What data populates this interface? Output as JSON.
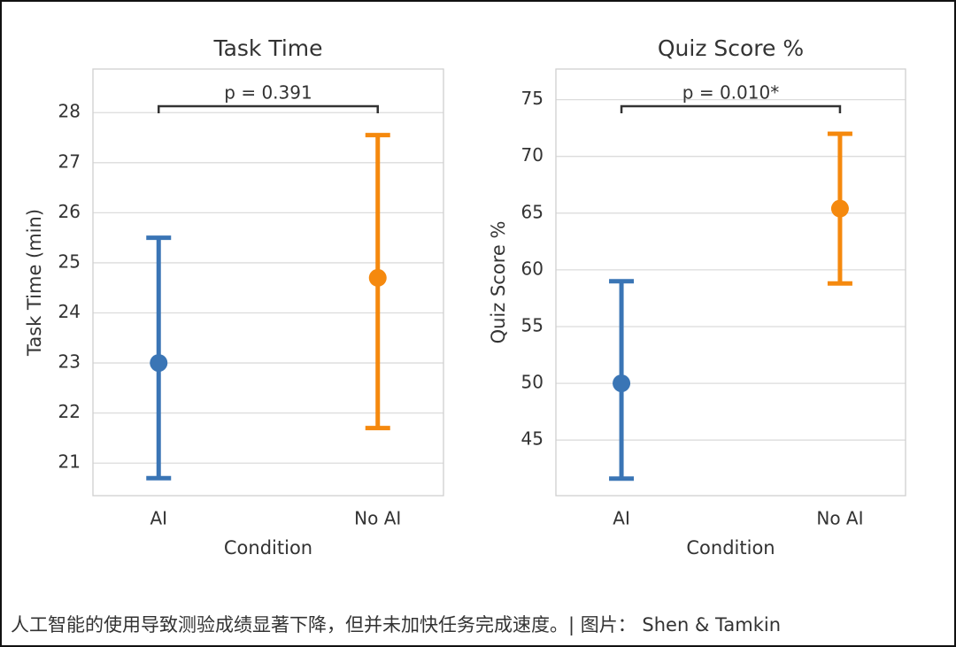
{
  "chart_data": [
    {
      "type": "pointrange",
      "title": "Task Time",
      "x_label": "Condition",
      "y_label": "Task Time (min)",
      "categories": [
        "AI",
        "No AI"
      ],
      "values": [
        23.0,
        24.7
      ],
      "lower": [
        20.7,
        21.7
      ],
      "upper": [
        25.5,
        27.55
      ],
      "colors": [
        "#3a75b5",
        "#f5890e"
      ],
      "ylim": [
        20.35,
        28.87
      ],
      "yticks": [
        21,
        22,
        23,
        24,
        25,
        26,
        27,
        28
      ],
      "grid": true,
      "annotation": "p = 0.391"
    },
    {
      "type": "pointrange",
      "title": "Quiz Score %",
      "x_label": "Condition",
      "y_label": "Quiz Score %",
      "categories": [
        "AI",
        "No AI"
      ],
      "values": [
        50.0,
        65.4
      ],
      "lower": [
        41.6,
        58.8
      ],
      "upper": [
        59.0,
        72.0
      ],
      "colors": [
        "#3a75b5",
        "#f5890e"
      ],
      "ylim": [
        40.1,
        77.7
      ],
      "yticks": [
        45,
        50,
        55,
        60,
        65,
        70,
        75
      ],
      "grid": true,
      "annotation": "p = 0.010*"
    }
  ],
  "caption": "人工智能的使用导致测验成绩显著下降，但并未加快任务完成速度。| 图片： Shen & Tamkin"
}
